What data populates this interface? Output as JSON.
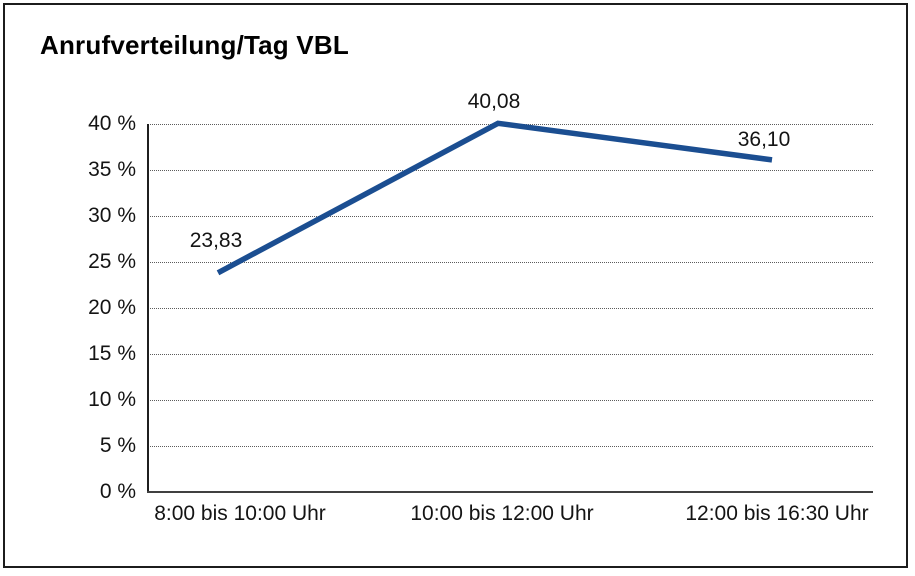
{
  "window": {
    "background": "#ffffff",
    "border_color": "#1c1c1c"
  },
  "chart_data": {
    "type": "line",
    "title": "Anrufverteilung/Tag VBL",
    "categories": [
      "8:00 bis 10:00 Uhr",
      "10:00 bis 12:00 Uhr",
      "12:00 bis 16:30 Uhr"
    ],
    "values": [
      23.83,
      40.08,
      36.1
    ],
    "point_labels": [
      "23,83",
      "40,08",
      "36,10"
    ],
    "y_ticks": [
      {
        "value": 0,
        "label": "0 %"
      },
      {
        "value": 5,
        "label": "5 %"
      },
      {
        "value": 10,
        "label": "10 %"
      },
      {
        "value": 15,
        "label": "15 %"
      },
      {
        "value": 20,
        "label": "20 %"
      },
      {
        "value": 25,
        "label": "25 %"
      },
      {
        "value": 30,
        "label": "30 %"
      },
      {
        "value": 35,
        "label": "35 %"
      },
      {
        "value": 40,
        "label": "40 %"
      }
    ],
    "ylim": [
      0,
      40
    ],
    "xlabel": "",
    "ylabel": "",
    "grid": "horizontal-dotted",
    "legend": "none",
    "line_color": "#1b4e91",
    "text_color": "#141414"
  }
}
